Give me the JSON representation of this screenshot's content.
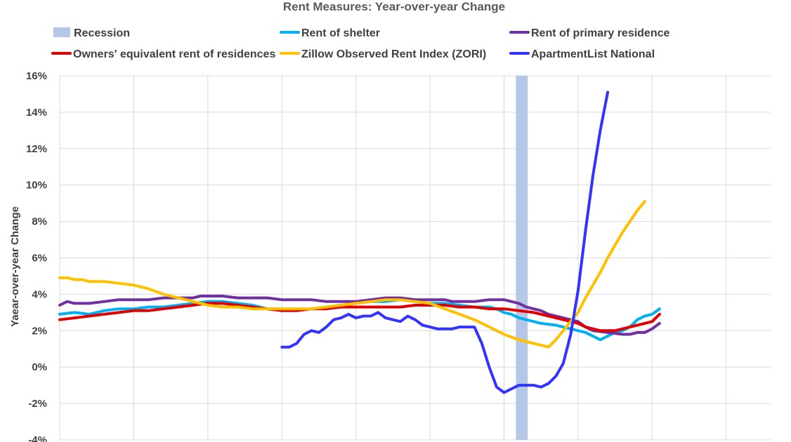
{
  "chart_data": {
    "type": "line",
    "title": "Rent Measures: Year-over-year Change",
    "ylabel": "Yaear-over-year Change",
    "xlabel": "",
    "ylim": [
      -4,
      16
    ],
    "yticks": [
      "-4%",
      "-2%",
      "0%",
      "2%",
      "4%",
      "6%",
      "8%",
      "10%",
      "12%",
      "14%",
      "16%"
    ],
    "ytick_values": [
      -4,
      -2,
      0,
      2,
      4,
      6,
      8,
      10,
      12,
      14,
      16
    ],
    "xlim": [
      0,
      96
    ],
    "x_gridlines": [
      10,
      20,
      30,
      40,
      50,
      60,
      70,
      80,
      90
    ],
    "grid": true,
    "legend_position": "top",
    "recession": {
      "name": "Recession",
      "start": 61.6,
      "end": 63.2,
      "color": "#b4c7e7"
    },
    "series": [
      {
        "name": "Rent of shelter",
        "color": "#00b0f0",
        "points": [
          [
            0,
            2.9
          ],
          [
            2,
            3.0
          ],
          [
            4,
            2.9
          ],
          [
            6,
            3.1
          ],
          [
            8,
            3.2
          ],
          [
            10,
            3.2
          ],
          [
            12,
            3.3
          ],
          [
            14,
            3.3
          ],
          [
            16,
            3.4
          ],
          [
            18,
            3.5
          ],
          [
            20,
            3.6
          ],
          [
            22,
            3.6
          ],
          [
            24,
            3.5
          ],
          [
            26,
            3.4
          ],
          [
            28,
            3.2
          ],
          [
            30,
            3.2
          ],
          [
            32,
            3.1
          ],
          [
            34,
            3.2
          ],
          [
            36,
            3.3
          ],
          [
            38,
            3.4
          ],
          [
            40,
            3.5
          ],
          [
            42,
            3.6
          ],
          [
            44,
            3.6
          ],
          [
            46,
            3.7
          ],
          [
            48,
            3.6
          ],
          [
            50,
            3.5
          ],
          [
            52,
            3.5
          ],
          [
            54,
            3.4
          ],
          [
            56,
            3.3
          ],
          [
            58,
            3.3
          ],
          [
            59,
            3.2
          ],
          [
            60,
            3.0
          ],
          [
            61,
            2.9
          ],
          [
            62,
            2.7
          ],
          [
            63,
            2.6
          ],
          [
            65,
            2.4
          ],
          [
            67,
            2.3
          ],
          [
            69,
            2.1
          ],
          [
            71,
            1.9
          ],
          [
            72,
            1.7
          ],
          [
            73,
            1.5
          ],
          [
            74,
            1.7
          ],
          [
            75,
            1.9
          ],
          [
            76,
            2.0
          ],
          [
            77,
            2.2
          ],
          [
            78,
            2.6
          ],
          [
            79,
            2.8
          ],
          [
            80,
            2.9
          ],
          [
            81,
            3.2
          ]
        ]
      },
      {
        "name": "Rent of primary residence",
        "color": "#7030a0",
        "points": [
          [
            0,
            3.4
          ],
          [
            1,
            3.6
          ],
          [
            2,
            3.5
          ],
          [
            4,
            3.5
          ],
          [
            6,
            3.6
          ],
          [
            8,
            3.7
          ],
          [
            10,
            3.7
          ],
          [
            12,
            3.7
          ],
          [
            14,
            3.8
          ],
          [
            16,
            3.8
          ],
          [
            18,
            3.8
          ],
          [
            19,
            3.9
          ],
          [
            20,
            3.9
          ],
          [
            22,
            3.9
          ],
          [
            24,
            3.8
          ],
          [
            26,
            3.8
          ],
          [
            28,
            3.8
          ],
          [
            30,
            3.7
          ],
          [
            32,
            3.7
          ],
          [
            34,
            3.7
          ],
          [
            36,
            3.6
          ],
          [
            38,
            3.6
          ],
          [
            40,
            3.6
          ],
          [
            42,
            3.7
          ],
          [
            44,
            3.8
          ],
          [
            46,
            3.8
          ],
          [
            48,
            3.7
          ],
          [
            50,
            3.7
          ],
          [
            52,
            3.7
          ],
          [
            53,
            3.6
          ],
          [
            54,
            3.6
          ],
          [
            56,
            3.6
          ],
          [
            58,
            3.7
          ],
          [
            60,
            3.7
          ],
          [
            62,
            3.5
          ],
          [
            63,
            3.3
          ],
          [
            65,
            3.1
          ],
          [
            66,
            2.9
          ],
          [
            68,
            2.7
          ],
          [
            70,
            2.5
          ],
          [
            71,
            2.2
          ],
          [
            72,
            2.0
          ],
          [
            74,
            1.9
          ],
          [
            76,
            1.8
          ],
          [
            77,
            1.8
          ],
          [
            78,
            1.9
          ],
          [
            79,
            1.9
          ],
          [
            80,
            2.1
          ],
          [
            81,
            2.4
          ]
        ]
      },
      {
        "name": "Owners' equivalent rent of residences",
        "color": "#e00000",
        "points": [
          [
            0,
            2.6
          ],
          [
            2,
            2.7
          ],
          [
            4,
            2.8
          ],
          [
            6,
            2.9
          ],
          [
            8,
            3.0
          ],
          [
            10,
            3.1
          ],
          [
            12,
            3.1
          ],
          [
            14,
            3.2
          ],
          [
            16,
            3.3
          ],
          [
            18,
            3.4
          ],
          [
            20,
            3.5
          ],
          [
            22,
            3.5
          ],
          [
            24,
            3.4
          ],
          [
            26,
            3.3
          ],
          [
            28,
            3.2
          ],
          [
            30,
            3.1
          ],
          [
            32,
            3.1
          ],
          [
            34,
            3.2
          ],
          [
            36,
            3.2
          ],
          [
            38,
            3.3
          ],
          [
            40,
            3.3
          ],
          [
            42,
            3.3
          ],
          [
            44,
            3.3
          ],
          [
            46,
            3.3
          ],
          [
            48,
            3.4
          ],
          [
            50,
            3.4
          ],
          [
            52,
            3.4
          ],
          [
            54,
            3.3
          ],
          [
            56,
            3.3
          ],
          [
            58,
            3.2
          ],
          [
            59,
            3.2
          ],
          [
            60,
            3.2
          ],
          [
            62,
            3.1
          ],
          [
            64,
            3.0
          ],
          [
            66,
            2.8
          ],
          [
            68,
            2.6
          ],
          [
            69,
            2.5
          ],
          [
            70,
            2.4
          ],
          [
            71,
            2.2
          ],
          [
            72,
            2.1
          ],
          [
            73,
            2.0
          ],
          [
            74,
            2.0
          ],
          [
            75,
            2.0
          ],
          [
            76,
            2.1
          ],
          [
            77,
            2.2
          ],
          [
            78,
            2.3
          ],
          [
            79,
            2.4
          ],
          [
            80,
            2.5
          ],
          [
            81,
            2.9
          ]
        ]
      },
      {
        "name": "Zillow Observed Rent Index (ZORI)",
        "color": "#ffc000",
        "points": [
          [
            0,
            4.9
          ],
          [
            1,
            4.9
          ],
          [
            2,
            4.8
          ],
          [
            3,
            4.8
          ],
          [
            4,
            4.7
          ],
          [
            6,
            4.7
          ],
          [
            8,
            4.6
          ],
          [
            10,
            4.5
          ],
          [
            12,
            4.3
          ],
          [
            14,
            4.0
          ],
          [
            16,
            3.8
          ],
          [
            18,
            3.6
          ],
          [
            20,
            3.4
          ],
          [
            22,
            3.3
          ],
          [
            24,
            3.3
          ],
          [
            26,
            3.2
          ],
          [
            28,
            3.2
          ],
          [
            30,
            3.2
          ],
          [
            32,
            3.2
          ],
          [
            34,
            3.2
          ],
          [
            36,
            3.3
          ],
          [
            38,
            3.4
          ],
          [
            40,
            3.5
          ],
          [
            42,
            3.6
          ],
          [
            44,
            3.7
          ],
          [
            46,
            3.7
          ],
          [
            48,
            3.6
          ],
          [
            50,
            3.5
          ],
          [
            52,
            3.2
          ],
          [
            54,
            2.9
          ],
          [
            56,
            2.6
          ],
          [
            58,
            2.2
          ],
          [
            60,
            1.8
          ],
          [
            62,
            1.5
          ],
          [
            64,
            1.3
          ],
          [
            65,
            1.2
          ],
          [
            66,
            1.1
          ],
          [
            67,
            1.5
          ],
          [
            68,
            2.0
          ],
          [
            69,
            2.5
          ],
          [
            70,
            3.0
          ],
          [
            71,
            3.8
          ],
          [
            72,
            4.5
          ],
          [
            73,
            5.2
          ],
          [
            74,
            6.0
          ],
          [
            75,
            6.7
          ],
          [
            76,
            7.4
          ],
          [
            77,
            8.0
          ],
          [
            78,
            8.6
          ],
          [
            79,
            9.1
          ]
        ]
      },
      {
        "name": "ApartmentList National",
        "color": "#3333ff",
        "points": [
          [
            30,
            1.1
          ],
          [
            31,
            1.1
          ],
          [
            32,
            1.3
          ],
          [
            33,
            1.8
          ],
          [
            34,
            2.0
          ],
          [
            35,
            1.9
          ],
          [
            36,
            2.2
          ],
          [
            37,
            2.6
          ],
          [
            38,
            2.7
          ],
          [
            39,
            2.9
          ],
          [
            40,
            2.7
          ],
          [
            41,
            2.8
          ],
          [
            42,
            2.8
          ],
          [
            43,
            3.0
          ],
          [
            44,
            2.7
          ],
          [
            45,
            2.6
          ],
          [
            46,
            2.5
          ],
          [
            47,
            2.8
          ],
          [
            48,
            2.6
          ],
          [
            49,
            2.3
          ],
          [
            50,
            2.2
          ],
          [
            51,
            2.1
          ],
          [
            52,
            2.1
          ],
          [
            53,
            2.1
          ],
          [
            54,
            2.2
          ],
          [
            55,
            2.2
          ],
          [
            56,
            2.2
          ],
          [
            57,
            1.3
          ],
          [
            58,
            0.0
          ],
          [
            59,
            -1.1
          ],
          [
            60,
            -1.4
          ],
          [
            61,
            -1.2
          ],
          [
            62,
            -1.0
          ],
          [
            63,
            -1.0
          ],
          [
            64,
            -1.0
          ],
          [
            65,
            -1.1
          ],
          [
            66,
            -0.9
          ],
          [
            67,
            -0.5
          ],
          [
            68,
            0.2
          ],
          [
            69,
            1.8
          ],
          [
            70,
            4.2
          ],
          [
            71,
            7.5
          ],
          [
            72,
            10.5
          ],
          [
            73,
            13.0
          ],
          [
            74,
            15.1
          ]
        ]
      }
    ]
  }
}
